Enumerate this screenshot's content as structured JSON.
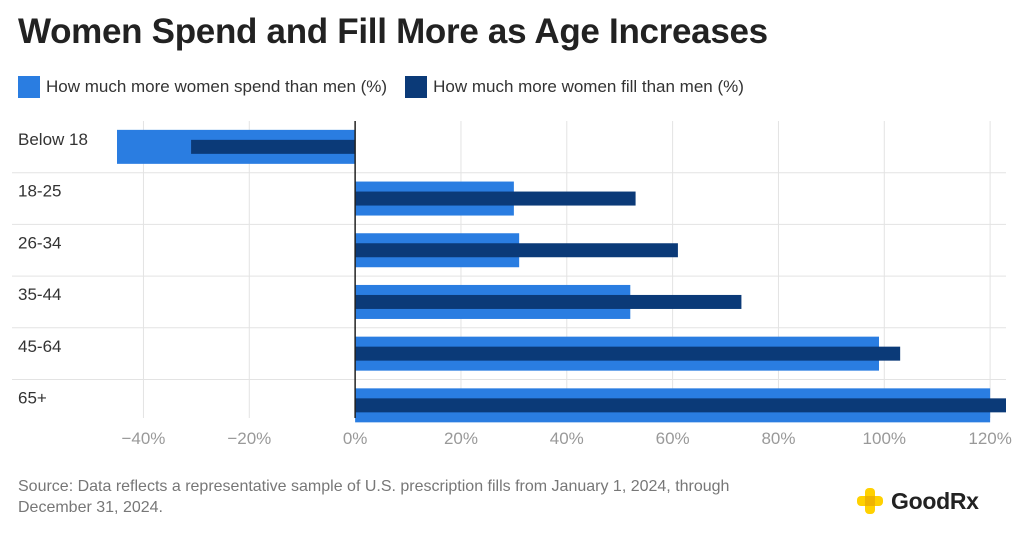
{
  "title": "Women Spend and Fill More as Age Increases",
  "legend": {
    "spend_label": "How much more women spend than men (%)",
    "fill_label": "How much more women fill than men (%)"
  },
  "colors": {
    "spend": "#2a7de1",
    "fill": "#0b3a78",
    "grid": "#e3e3e3",
    "axis": "#222222",
    "brand": "#ffd100"
  },
  "chart_data": {
    "type": "bar",
    "orientation": "horizontal",
    "categories": [
      "Below 18",
      "18-25",
      "26-34",
      "35-44",
      "45-64",
      "65+"
    ],
    "series": [
      {
        "name": "How much more women spend than men (%)",
        "values": [
          -45,
          30,
          31,
          52,
          99,
          120
        ]
      },
      {
        "name": "How much more women fill than men (%)",
        "values": [
          -31,
          53,
          61,
          73,
          103,
          126
        ]
      }
    ],
    "xlim": [
      -45,
      123
    ],
    "xticks": [
      -40,
      -20,
      0,
      20,
      40,
      60,
      80,
      100,
      120
    ],
    "xtick_labels": [
      "−40%",
      "−20%",
      "0%",
      "20%",
      "40%",
      "60%",
      "80%",
      "100%",
      "120%"
    ],
    "grid": true
  },
  "footer": {
    "source": "Source: Data reflects a representative sample of U.S. prescription fills from January 1, 2024, through December 31, 2024."
  },
  "brand": {
    "name": "GoodRx"
  }
}
